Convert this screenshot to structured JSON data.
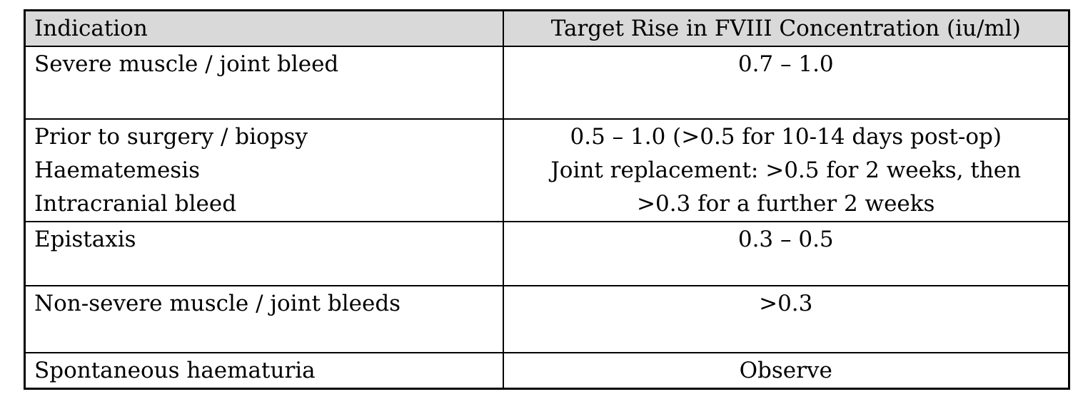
{
  "table": {
    "header_bg": "#d9d9d9",
    "border_color": "#000000",
    "columns": [
      {
        "label": "Indication"
      },
      {
        "label": "Target Rise in FVIII Concentration (iu/ml)"
      }
    ],
    "rows": [
      {
        "indication": [
          "Severe muscle / joint bleed"
        ],
        "target": [
          "0.7 – 1.0"
        ]
      },
      {
        "indication": [
          "Prior to surgery / biopsy",
          "Haematemesis",
          "Intracranial bleed"
        ],
        "target": [
          "0.5 – 1.0 (>0.5 for 10-14 days post-op)",
          "Joint replacement: >0.5 for 2 weeks, then",
          ">0.3 for a further 2 weeks"
        ]
      },
      {
        "indication": [
          "Epistaxis"
        ],
        "target": [
          "0.3 – 0.5"
        ]
      },
      {
        "indication": [
          "Non-severe muscle / joint bleeds"
        ],
        "target": [
          ">0.3"
        ]
      },
      {
        "indication": [
          "Spontaneous haematuria"
        ],
        "target": [
          "Observe"
        ]
      }
    ]
  }
}
